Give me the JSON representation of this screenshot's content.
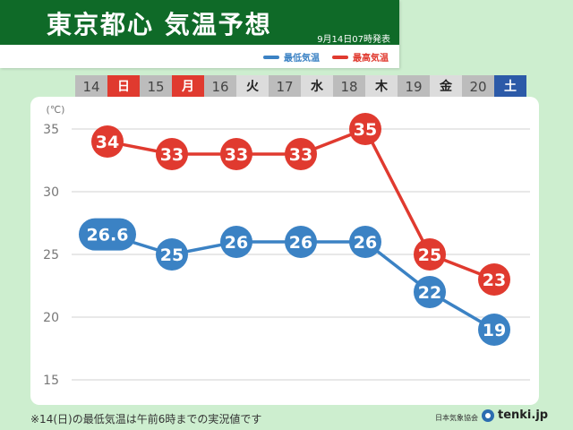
{
  "header": {
    "title": "東京都心 気温予想",
    "issued": "9月14日07時発表",
    "legend_low": "最低気温",
    "legend_high": "最高気温"
  },
  "days": [
    {
      "date": "14",
      "weekday": "日",
      "kind": "sun"
    },
    {
      "date": "15",
      "weekday": "月",
      "kind": "mon"
    },
    {
      "date": "16",
      "weekday": "火",
      "kind": "weekday"
    },
    {
      "date": "17",
      "weekday": "水",
      "kind": "weekday"
    },
    {
      "date": "18",
      "weekday": "木",
      "kind": "weekday"
    },
    {
      "date": "19",
      "weekday": "金",
      "kind": "weekday"
    },
    {
      "date": "20",
      "weekday": "土",
      "kind": "sat"
    }
  ],
  "chart_data": {
    "type": "line",
    "ylabel": "(℃)",
    "ylim": [
      15,
      35
    ],
    "yticks": [
      15,
      20,
      25,
      30,
      35
    ],
    "categories": [
      "14",
      "15",
      "16",
      "17",
      "18",
      "19",
      "20"
    ],
    "grid": true,
    "series": [
      {
        "name": "最高気温",
        "color": "#e03a2f",
        "values": [
          34,
          33,
          33,
          33,
          35,
          25,
          23
        ],
        "labels": [
          "34",
          "33",
          "33",
          "33",
          "35",
          "25",
          "23"
        ]
      },
      {
        "name": "最低気温",
        "color": "#3b82c4",
        "values": [
          26.6,
          25,
          26,
          26,
          26,
          22,
          19
        ],
        "labels": [
          "26.6",
          "25",
          "26",
          "26",
          "26",
          "22",
          "19"
        ]
      }
    ]
  },
  "footnote": "※14(日)の最低気温は午前6時までの実況値です",
  "source": "日本気象協会",
  "brand": "tenki.jp",
  "colors": {
    "header_green": "#0f6a28",
    "background": "#cdeecf",
    "high": "#e03a2f",
    "low": "#3b82c4"
  }
}
